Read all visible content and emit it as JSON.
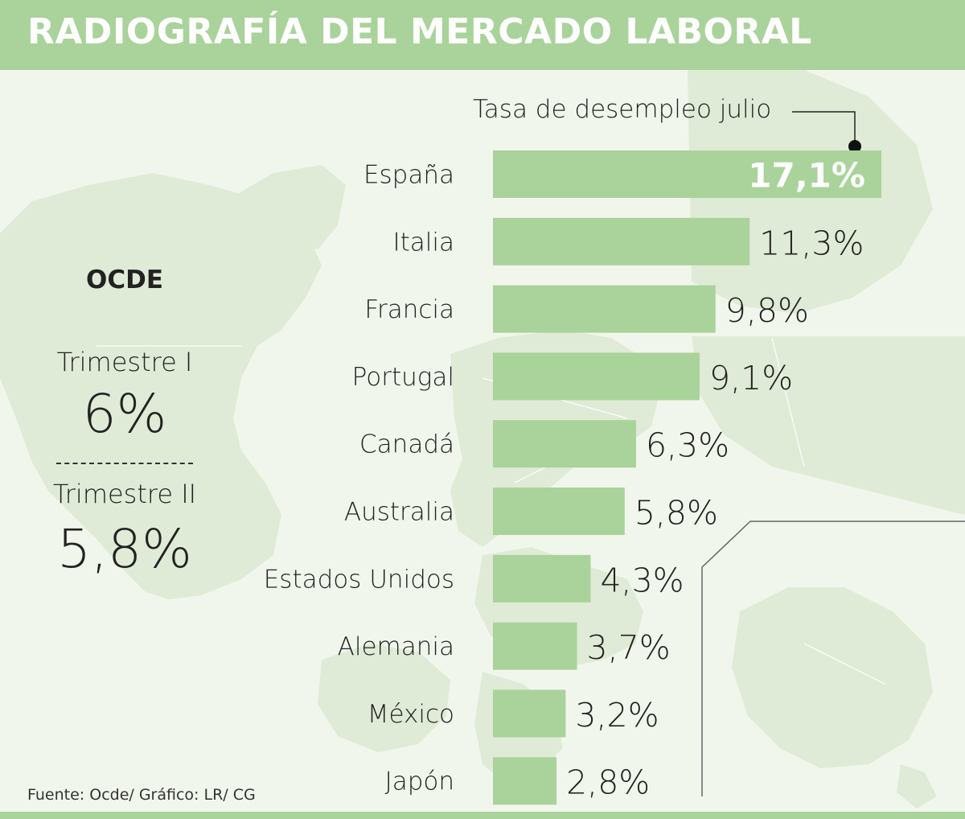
{
  "header": {
    "title": "RADIOGRAFÍA DEL MERCADO LABORAL"
  },
  "sidebar": {
    "heading": "OCDE",
    "q1_label": "Trimestre I",
    "q1_value": "6%",
    "q2_label": "Trimestre II",
    "q2_value": "5,8%"
  },
  "legend": {
    "label": "Tasa de desempleo julio"
  },
  "chart_data": {
    "type": "bar",
    "orientation": "horizontal",
    "title": "RADIOGRAFÍA DEL MERCADO LABORAL",
    "categories": [
      "España",
      "Italia",
      "Francia",
      "Portugal",
      "Canadá",
      "Australia",
      "Estados Unidos",
      "Alemania",
      "México",
      "Japón"
    ],
    "values": [
      17.1,
      11.3,
      9.8,
      9.1,
      6.3,
      5.8,
      4.3,
      3.7,
      3.2,
      2.8
    ],
    "value_labels": [
      "17,1%",
      "11,3%",
      "9,8%",
      "9,1%",
      "6,3%",
      "5,8%",
      "4,3%",
      "3,7%",
      "3,2%",
      "2,8%"
    ],
    "series": [
      {
        "name": "Tasa de desempleo julio",
        "values": [
          17.1,
          11.3,
          9.8,
          9.1,
          6.3,
          5.8,
          4.3,
          3.7,
          3.2,
          2.8
        ]
      }
    ],
    "xlim": [
      0,
      17.1
    ],
    "grid": false,
    "legend_position": "top"
  },
  "colors": {
    "bar": "#a9d39a",
    "title_bar": "#a9d39a",
    "background": "#f1f6ec",
    "map": "#dfebd6"
  },
  "footer": {
    "source": "Fuente: Ocde/ Gráfico: LR/ CG"
  }
}
